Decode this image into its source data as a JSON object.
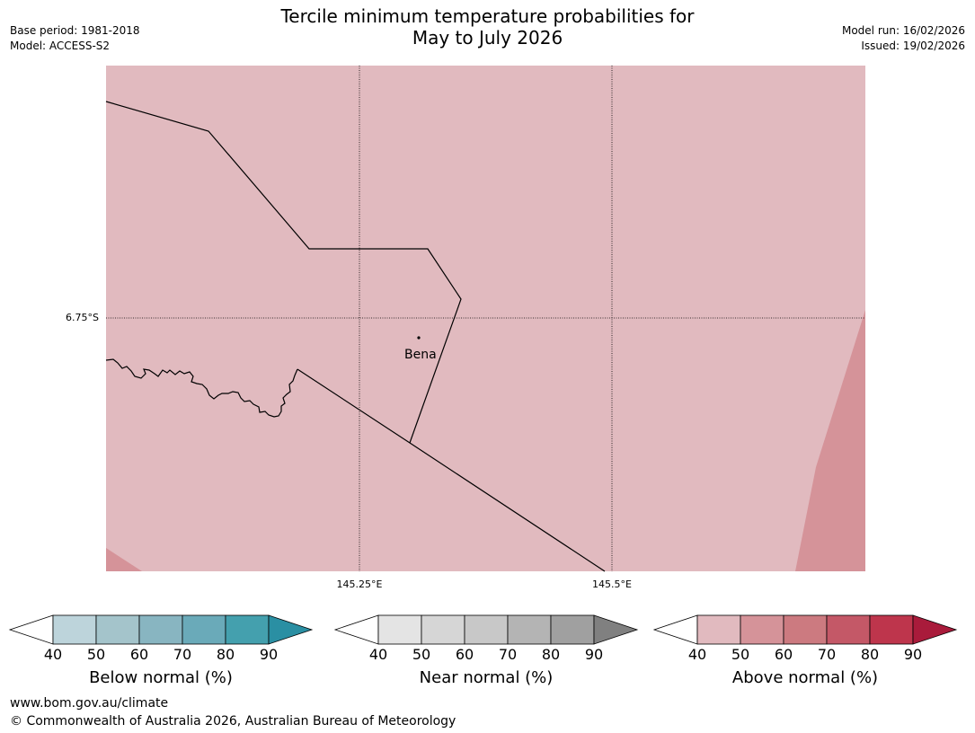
{
  "header": {
    "title_line1": "Tercile minimum temperature probabilities for",
    "title_line2": "May to July 2026",
    "base_period": "Base period: 1981-2018",
    "model": "Model: ACCESS-S2",
    "model_run": "Model run: 16/02/2026",
    "issued": "Issued: 19/02/2026"
  },
  "map": {
    "lat_label": "6.75°S",
    "lon_labels": [
      "145.25°E",
      "145.5°E"
    ],
    "city": {
      "name": "Bena"
    },
    "colors": {
      "main_fill": "#e1babf",
      "stronger_fill": "#d59399",
      "border": "#000000"
    }
  },
  "legends": [
    {
      "title": "Below normal (%)",
      "ticks": [
        "40",
        "50",
        "60",
        "70",
        "80",
        "90"
      ],
      "colors": [
        "#bdd4db",
        "#a4c4cb",
        "#88b5c1",
        "#6aaab9",
        "#44a0ae",
        "#2a8fa3"
      ]
    },
    {
      "title": "Near normal (%)",
      "ticks": [
        "40",
        "50",
        "60",
        "70",
        "80",
        "90"
      ],
      "colors": [
        "#e4e4e4",
        "#d6d6d6",
        "#c8c8c8",
        "#b4b4b4",
        "#a0a0a0",
        "#808080"
      ]
    },
    {
      "title": "Above normal (%)",
      "ticks": [
        "40",
        "50",
        "60",
        "70",
        "80",
        "90"
      ],
      "colors": [
        "#e1babf",
        "#d59399",
        "#cc7a80",
        "#c45867",
        "#be354c",
        "#a91b3b"
      ]
    }
  ],
  "footer": {
    "url": "www.bom.gov.au/climate",
    "copyright": "© Commonwealth of Australia 2026, Australian Bureau of Meteorology"
  }
}
